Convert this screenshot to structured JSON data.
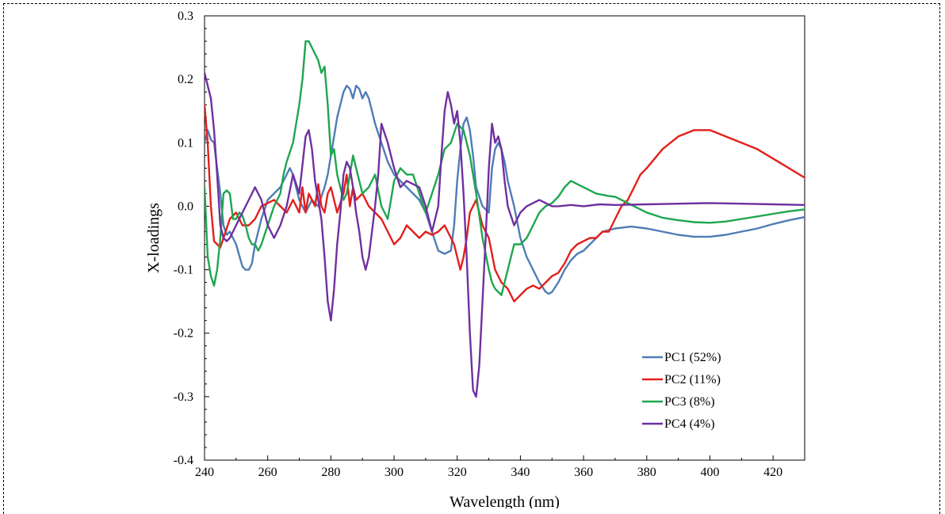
{
  "chart_data": {
    "type": "line",
    "title": "",
    "xlabel": "Wavelength (nm)",
    "ylabel": "X-loadings",
    "xlim": [
      240,
      430
    ],
    "ylim": [
      -0.4,
      0.3
    ],
    "xticks": [
      240,
      260,
      280,
      300,
      320,
      340,
      360,
      380,
      400,
      420
    ],
    "yticks": [
      -0.4,
      -0.3,
      -0.2,
      -0.1,
      0.0,
      0.1,
      0.2,
      0.3
    ],
    "xtick_labels": [
      "240",
      "260",
      "280",
      "300",
      "320",
      "340",
      "360",
      "380",
      "400",
      "420"
    ],
    "ytick_labels": [
      "-0.4",
      "-0.3",
      "-0.2",
      "-0.1",
      "0.0",
      "0.1",
      "0.2",
      "0.3"
    ],
    "grid": false,
    "legend_position": "bottom-right",
    "series": [
      {
        "name": "PC1 (52%)",
        "color": "#4F7DB5",
        "x": [
          240,
          241,
          242,
          243,
          244,
          245,
          246,
          247,
          248,
          250,
          252,
          253,
          254,
          255,
          256,
          258,
          260,
          262,
          264,
          266,
          267,
          268,
          269,
          270,
          272,
          274,
          276,
          278,
          279,
          280,
          281,
          282,
          283,
          284,
          285,
          286,
          287,
          288,
          289,
          290,
          291,
          292,
          293,
          294,
          296,
          298,
          300,
          302,
          304,
          306,
          308,
          310,
          312,
          314,
          316,
          318,
          319,
          320,
          321,
          322,
          323,
          324,
          325,
          326,
          328,
          330,
          331,
          332,
          333,
          334,
          335,
          336,
          338,
          340,
          342,
          344,
          346,
          348,
          349,
          350,
          352,
          354,
          356,
          358,
          360,
          362,
          364,
          366,
          370,
          375,
          380,
          385,
          390,
          395,
          400,
          405,
          410,
          415,
          420,
          425,
          430
        ],
        "y": [
          0.1,
          0.12,
          0.105,
          0.1,
          0.06,
          0.02,
          -0.03,
          -0.045,
          -0.04,
          -0.06,
          -0.095,
          -0.1,
          -0.1,
          -0.09,
          -0.06,
          -0.02,
          0.01,
          0.02,
          0.03,
          0.05,
          0.06,
          0.05,
          0.03,
          0.01,
          -0.01,
          0.01,
          0.0,
          0.03,
          0.05,
          0.08,
          0.11,
          0.14,
          0.16,
          0.18,
          0.19,
          0.185,
          0.17,
          0.19,
          0.185,
          0.17,
          0.18,
          0.17,
          0.15,
          0.13,
          0.1,
          0.07,
          0.05,
          0.04,
          0.03,
          0.02,
          0.01,
          -0.01,
          -0.04,
          -0.07,
          -0.075,
          -0.07,
          -0.03,
          0.04,
          0.09,
          0.13,
          0.14,
          0.12,
          0.08,
          0.03,
          0.0,
          -0.01,
          0.06,
          0.09,
          0.1,
          0.09,
          0.07,
          0.04,
          0.0,
          -0.05,
          -0.08,
          -0.1,
          -0.12,
          -0.135,
          -0.138,
          -0.135,
          -0.12,
          -0.1,
          -0.085,
          -0.075,
          -0.07,
          -0.06,
          -0.05,
          -0.04,
          -0.035,
          -0.032,
          -0.035,
          -0.04,
          -0.045,
          -0.048,
          -0.048,
          -0.045,
          -0.04,
          -0.035,
          -0.028,
          -0.022,
          -0.017
        ]
      },
      {
        "name": "PC2 (11%)",
        "color": "#E3201B",
        "x": [
          240,
          241,
          242,
          243,
          244,
          245,
          246,
          248,
          250,
          252,
          254,
          256,
          258,
          260,
          262,
          264,
          266,
          268,
          270,
          271,
          272,
          273,
          274,
          275,
          276,
          277,
          278,
          279,
          280,
          282,
          284,
          285,
          286,
          287,
          288,
          290,
          292,
          294,
          296,
          298,
          300,
          302,
          304,
          306,
          308,
          310,
          312,
          314,
          316,
          318,
          319,
          320,
          321,
          322,
          323,
          324,
          326,
          328,
          330,
          332,
          334,
          336,
          337,
          338,
          340,
          342,
          344,
          346,
          348,
          350,
          352,
          354,
          356,
          358,
          360,
          362,
          364,
          366,
          368,
          370,
          372,
          374,
          376,
          378,
          380,
          385,
          390,
          395,
          400,
          405,
          410,
          415,
          420,
          425,
          430
        ],
        "y": [
          0.16,
          0.1,
          0.0,
          -0.055,
          -0.06,
          -0.065,
          -0.05,
          -0.02,
          -0.01,
          -0.03,
          -0.03,
          -0.02,
          0.0,
          0.005,
          0.01,
          0.0,
          -0.01,
          0.01,
          -0.01,
          0.03,
          -0.01,
          0.02,
          0.01,
          0.0,
          0.035,
          0.0,
          -0.01,
          0.02,
          0.03,
          -0.01,
          0.02,
          0.05,
          0.0,
          0.03,
          0.01,
          0.02,
          0.0,
          -0.01,
          -0.02,
          -0.04,
          -0.06,
          -0.05,
          -0.03,
          -0.04,
          -0.05,
          -0.04,
          -0.045,
          -0.04,
          -0.03,
          -0.05,
          -0.06,
          -0.08,
          -0.1,
          -0.08,
          -0.05,
          -0.01,
          0.01,
          -0.03,
          -0.05,
          -0.1,
          -0.12,
          -0.13,
          -0.14,
          -0.15,
          -0.14,
          -0.13,
          -0.125,
          -0.13,
          -0.12,
          -0.11,
          -0.105,
          -0.09,
          -0.07,
          -0.06,
          -0.055,
          -0.05,
          -0.05,
          -0.04,
          -0.04,
          -0.02,
          0.0,
          0.01,
          0.03,
          0.05,
          0.06,
          0.09,
          0.11,
          0.12,
          0.12,
          0.11,
          0.1,
          0.09,
          0.075,
          0.06,
          0.045
        ]
      },
      {
        "name": "PC3 (8%)",
        "color": "#1FA650",
        "x": [
          240,
          241,
          242,
          243,
          244,
          245,
          246,
          247,
          248,
          249,
          250,
          251,
          252,
          253,
          254,
          255,
          256,
          257,
          258,
          260,
          262,
          264,
          265,
          266,
          268,
          270,
          271,
          272,
          273,
          274,
          275,
          276,
          277,
          278,
          279,
          280,
          281,
          282,
          283,
          284,
          285,
          286,
          287,
          288,
          289,
          290,
          292,
          294,
          296,
          298,
          300,
          302,
          304,
          306,
          308,
          310,
          312,
          314,
          316,
          318,
          320,
          322,
          324,
          326,
          328,
          330,
          331,
          332,
          334,
          336,
          338,
          340,
          341,
          342,
          344,
          346,
          348,
          350,
          352,
          354,
          356,
          358,
          360,
          362,
          364,
          366,
          368,
          370,
          372,
          376,
          380,
          385,
          390,
          395,
          400,
          405,
          410,
          415,
          420,
          425,
          430
        ],
        "y": [
          0.03,
          -0.08,
          -0.11,
          -0.125,
          -0.1,
          -0.05,
          0.02,
          0.025,
          0.02,
          -0.02,
          -0.02,
          -0.01,
          -0.015,
          -0.03,
          -0.05,
          -0.06,
          -0.06,
          -0.07,
          -0.06,
          -0.03,
          0.0,
          0.02,
          0.05,
          0.07,
          0.1,
          0.16,
          0.2,
          0.26,
          0.26,
          0.25,
          0.24,
          0.23,
          0.21,
          0.22,
          0.16,
          0.08,
          0.09,
          0.05,
          0.03,
          0.01,
          0.02,
          0.05,
          0.08,
          0.06,
          0.04,
          0.02,
          0.03,
          0.05,
          0.0,
          -0.02,
          0.04,
          0.06,
          0.05,
          0.05,
          0.02,
          -0.01,
          0.02,
          0.05,
          0.09,
          0.1,
          0.13,
          0.12,
          0.08,
          0.02,
          -0.05,
          -0.1,
          -0.12,
          -0.13,
          -0.14,
          -0.1,
          -0.06,
          -0.06,
          -0.055,
          -0.05,
          -0.03,
          -0.01,
          0.0,
          0.005,
          0.015,
          0.03,
          0.04,
          0.035,
          0.03,
          0.025,
          0.02,
          0.018,
          0.016,
          0.015,
          0.01,
          0.0,
          -0.01,
          -0.018,
          -0.022,
          -0.025,
          -0.026,
          -0.024,
          -0.02,
          -0.016,
          -0.012,
          -0.008,
          -0.005
        ]
      },
      {
        "name": "PC4 (4%)",
        "color": "#7030A0",
        "x": [
          240,
          241,
          242,
          243,
          244,
          245,
          246,
          247,
          248,
          249,
          250,
          252,
          254,
          256,
          258,
          260,
          262,
          264,
          266,
          268,
          270,
          272,
          273,
          274,
          275,
          276,
          277,
          278,
          279,
          280,
          281,
          282,
          283,
          284,
          285,
          286,
          287,
          288,
          289,
          290,
          291,
          292,
          293,
          294,
          295,
          296,
          298,
          300,
          302,
          304,
          306,
          308,
          310,
          312,
          314,
          315,
          316,
          317,
          318,
          319,
          320,
          321,
          322,
          323,
          324,
          325,
          326,
          327,
          328,
          329,
          330,
          331,
          332,
          333,
          334,
          335,
          336,
          338,
          340,
          342,
          344,
          346,
          348,
          350,
          352,
          356,
          360,
          365,
          370,
          380,
          390,
          400,
          410,
          420,
          430
        ],
        "y": [
          0.21,
          0.19,
          0.17,
          0.12,
          0.05,
          -0.03,
          -0.05,
          -0.055,
          -0.05,
          -0.04,
          -0.03,
          -0.01,
          0.01,
          0.03,
          0.01,
          -0.03,
          -0.05,
          -0.03,
          0.0,
          0.05,
          0.02,
          0.11,
          0.12,
          0.09,
          0.04,
          0.01,
          -0.02,
          -0.08,
          -0.15,
          -0.18,
          -0.13,
          -0.06,
          -0.01,
          0.05,
          0.07,
          0.06,
          0.03,
          -0.01,
          -0.04,
          -0.08,
          -0.1,
          -0.08,
          -0.04,
          0.0,
          0.05,
          0.13,
          0.1,
          0.06,
          0.03,
          0.04,
          0.035,
          0.03,
          0.0,
          -0.04,
          0.0,
          0.08,
          0.15,
          0.18,
          0.16,
          0.13,
          0.15,
          0.1,
          0.02,
          -0.08,
          -0.2,
          -0.29,
          -0.3,
          -0.25,
          -0.15,
          -0.05,
          0.06,
          0.13,
          0.1,
          0.11,
          0.09,
          0.04,
          0.0,
          -0.03,
          -0.01,
          0.0,
          0.005,
          0.01,
          0.005,
          0.0,
          0.0,
          0.002,
          0.0,
          0.003,
          0.002,
          0.003,
          0.004,
          0.005,
          0.004,
          0.003,
          0.002
        ]
      }
    ]
  }
}
